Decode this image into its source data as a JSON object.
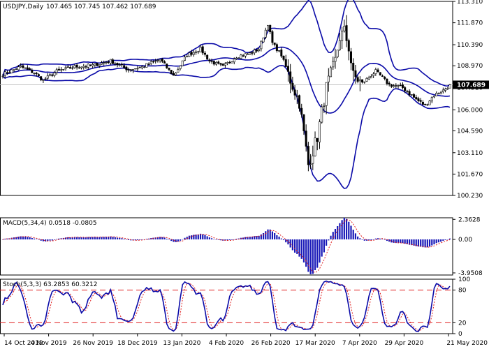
{
  "header": {
    "symbol_label": "USDJPY,Daily",
    "ohlc_label": "107.465 107.745 107.462 107.689"
  },
  "colors": {
    "bollinger": "#0a0aa8",
    "candle_up": "#ffffff",
    "candle_down": "#000000",
    "macd_hist": "#1a1ab8",
    "macd_signal": "#e02020",
    "stoch_main": "#0a0aa8",
    "stoch_signal": "#e02020",
    "level_line": "#e02020",
    "current_price_bg": "#000000"
  },
  "chart_data": [
    {
      "type": "candlestick",
      "name": "USDJPY Daily price with Bollinger Bands",
      "ylim": [
        100.23,
        113.31
      ],
      "y_ticks": [
        113.31,
        111.87,
        110.39,
        108.97,
        107.51,
        106.0,
        104.59,
        103.11,
        101.67,
        100.23
      ],
      "current_price": 107.689,
      "current_price_label": "107.689",
      "x_ticks": [
        "14 Oct 2019",
        "4 Nov 2019",
        "26 Nov 2019",
        "18 Dec 2019",
        "13 Jan 2020",
        "4 Feb 2020",
        "26 Feb 2020",
        "17 Mar 2020",
        "7 Apr 2020",
        "29 Apr 2020",
        "21 May 2020"
      ],
      "close_anchors": [
        {
          "x": 0,
          "y": 108.4
        },
        {
          "x": 8,
          "y": 108.9
        },
        {
          "x": 14,
          "y": 108.5
        },
        {
          "x": 18,
          "y": 108.0
        },
        {
          "x": 24,
          "y": 108.6
        },
        {
          "x": 32,
          "y": 108.9
        },
        {
          "x": 40,
          "y": 109.0
        },
        {
          "x": 48,
          "y": 109.3
        },
        {
          "x": 56,
          "y": 108.7
        },
        {
          "x": 62,
          "y": 108.9
        },
        {
          "x": 70,
          "y": 109.4
        },
        {
          "x": 76,
          "y": 108.3
        },
        {
          "x": 82,
          "y": 109.7
        },
        {
          "x": 88,
          "y": 110.1
        },
        {
          "x": 92,
          "y": 109.3
        },
        {
          "x": 98,
          "y": 108.9
        },
        {
          "x": 104,
          "y": 109.6
        },
        {
          "x": 110,
          "y": 109.8
        },
        {
          "x": 114,
          "y": 110.1
        },
        {
          "x": 118,
          "y": 111.8
        },
        {
          "x": 120,
          "y": 110.5
        },
        {
          "x": 124,
          "y": 109.7
        },
        {
          "x": 128,
          "y": 108.0
        },
        {
          "x": 132,
          "y": 106.5
        },
        {
          "x": 134,
          "y": 104.4
        },
        {
          "x": 136,
          "y": 102.3
        },
        {
          "x": 140,
          "y": 104.2
        },
        {
          "x": 144,
          "y": 107.5
        },
        {
          "x": 148,
          "y": 109.3
        },
        {
          "x": 150,
          "y": 110.9
        },
        {
          "x": 152,
          "y": 111.3
        },
        {
          "x": 154,
          "y": 110.2
        },
        {
          "x": 156,
          "y": 108.3
        },
        {
          "x": 160,
          "y": 107.8
        },
        {
          "x": 166,
          "y": 108.6
        },
        {
          "x": 172,
          "y": 107.7
        },
        {
          "x": 178,
          "y": 107.5
        },
        {
          "x": 184,
          "y": 106.7
        },
        {
          "x": 188,
          "y": 106.3
        },
        {
          "x": 192,
          "y": 107.0
        },
        {
          "x": 196,
          "y": 107.3
        },
        {
          "x": 199,
          "y": 107.69
        }
      ],
      "bollinger_period": 20
    },
    {
      "type": "bar",
      "name": "MACD",
      "label": "MACD(5,34,4) 0.0518 -0.0805",
      "ylim": [
        -4.2,
        2.55
      ],
      "y_ticks": [
        2.3628,
        0.0,
        -3.9508
      ],
      "y_tick_labels": [
        "2.3628",
        "0.00",
        "-3.9508"
      ],
      "fast": 5,
      "slow": 34,
      "signal": 4
    },
    {
      "type": "line",
      "name": "Stochastic",
      "label": "Stoch(5,3,3) 63.2853 60.3212",
      "ylim": [
        0,
        100
      ],
      "levels": [
        80,
        20
      ],
      "y_tick_labels": [
        "100",
        "80",
        "20",
        "0"
      ],
      "k": 5,
      "d": 3,
      "slowing": 3
    }
  ]
}
